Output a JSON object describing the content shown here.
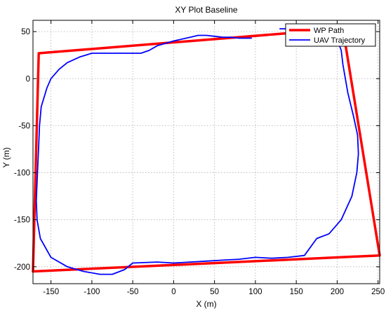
{
  "chart_data": {
    "type": "line",
    "title": "XY Plot Baseline",
    "xlabel": "X (m)",
    "ylabel": "Y (m)",
    "xlim": [
      -172,
      252
    ],
    "ylim": [
      -218,
      62
    ],
    "xticks": [
      -150,
      -100,
      -50,
      0,
      50,
      100,
      150,
      200,
      250
    ],
    "yticks": [
      50,
      0,
      -50,
      -100,
      -150,
      -200
    ],
    "grid": true,
    "legend_position": "top-right",
    "series": [
      {
        "name": "WP Path",
        "color": "#ff0000",
        "line_width": 3.5,
        "x": [
          -165,
          207,
          252,
          -172,
          -165
        ],
        "y": [
          27,
          53,
          -188,
          -205,
          27
        ]
      },
      {
        "name": "UAV Trajectory",
        "color": "#0000ff",
        "line_width": 1.8,
        "x": [
          130,
          160,
          185,
          200,
          205,
          207,
          210,
          213,
          220,
          225,
          226,
          224,
          218,
          205,
          190,
          175,
          160,
          140,
          120,
          100,
          80,
          60,
          40,
          20,
          0,
          -20,
          -50,
          -60,
          -75,
          -90,
          -110,
          -130,
          -150,
          -163,
          -167,
          -168,
          -167,
          -166,
          -165,
          -164,
          -162,
          -155,
          -150,
          -140,
          -130,
          -115,
          -100,
          -80,
          -60,
          -50,
          -40,
          -30,
          -20,
          0,
          20,
          30,
          40,
          50,
          60,
          70,
          80,
          95
        ],
        "y": [
          53,
          53,
          50,
          42,
          30,
          15,
          0,
          -15,
          -40,
          -60,
          -80,
          -100,
          -125,
          -150,
          -165,
          -170,
          -188,
          -190,
          -191,
          -190,
          -192,
          -193,
          -194,
          -195,
          -196,
          -195,
          -196,
          -203,
          -208,
          -208,
          -205,
          -200,
          -190,
          -170,
          -150,
          -130,
          -110,
          -90,
          -70,
          -50,
          -30,
          -10,
          0,
          10,
          17,
          23,
          27,
          27,
          27,
          27,
          27,
          30,
          35,
          40,
          44,
          46,
          46,
          45,
          44,
          44,
          43,
          43
        ]
      }
    ]
  }
}
